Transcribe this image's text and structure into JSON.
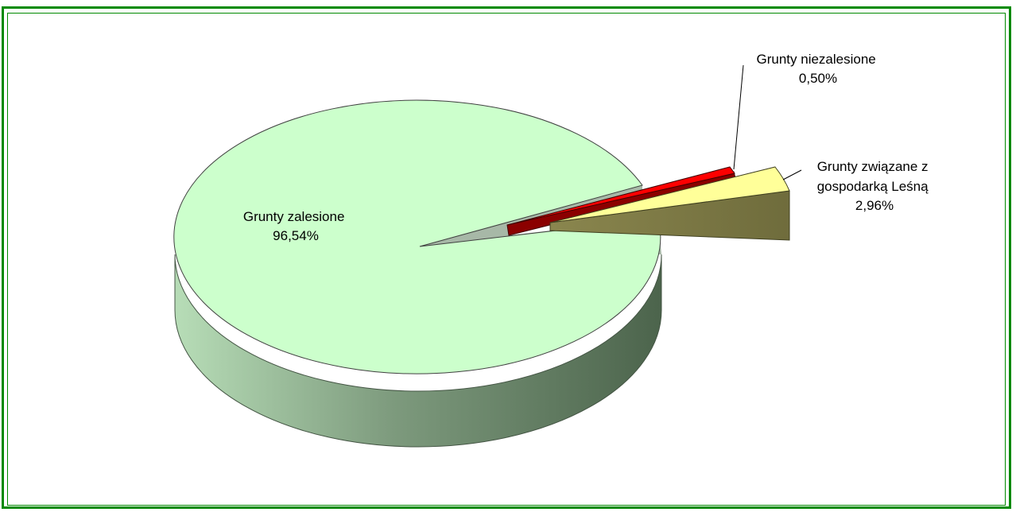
{
  "header": {
    "clipped_title": ""
  },
  "chart_data": {
    "type": "pie",
    "title": "",
    "slices": [
      {
        "label_lines": [
          "Grunty zalesione"
        ],
        "value_label": "96,54%",
        "value": 96.54,
        "color": "#ccffcc",
        "exploded": false
      },
      {
        "label_lines": [
          "Grunty niezalesione"
        ],
        "value_label": "0,50%",
        "value": 0.5,
        "color": "#ff0000",
        "exploded": true
      },
      {
        "label_lines": [
          "Grunty związane z",
          "gospodarką Leśną"
        ],
        "value_label": "2,96%",
        "value": 2.96,
        "color": "#ffff99",
        "exploded": true
      }
    ]
  }
}
